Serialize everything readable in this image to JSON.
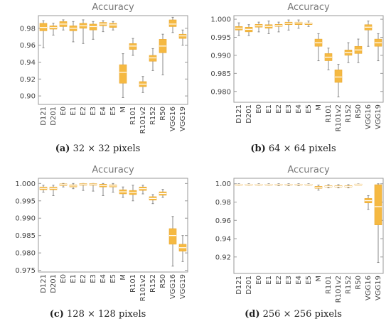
{
  "chart_data": [
    {
      "type": "box",
      "title": "Accuracy",
      "caption_label": "(a)",
      "caption_text": " 32 × 32 pixels",
      "categories": [
        "D121",
        "D201",
        "E0",
        "E1",
        "E2",
        "E3",
        "E4",
        "E5",
        "M",
        "R101",
        "R101v2",
        "R152",
        "R50",
        "VGG16",
        "VGG19"
      ],
      "ylim": [
        0.89,
        0.995
      ],
      "yticks": [
        "0.90",
        "0.92",
        "0.94",
        "0.96",
        "0.98"
      ],
      "color": "#F5B942",
      "boxes": [
        {
          "min": 0.957,
          "q1": 0.977,
          "median": 0.981,
          "q3": 0.986,
          "max": 0.989
        },
        {
          "min": 0.972,
          "q1": 0.979,
          "median": 0.981,
          "q3": 0.983,
          "max": 0.986
        },
        {
          "min": 0.978,
          "q1": 0.982,
          "median": 0.985,
          "q3": 0.988,
          "max": 0.99
        },
        {
          "min": 0.964,
          "q1": 0.977,
          "median": 0.98,
          "q3": 0.983,
          "max": 0.988
        },
        {
          "min": 0.962,
          "q1": 0.98,
          "median": 0.983,
          "q3": 0.986,
          "max": 0.99
        },
        {
          "min": 0.967,
          "q1": 0.978,
          "median": 0.982,
          "q3": 0.985,
          "max": 0.988
        },
        {
          "min": 0.976,
          "q1": 0.983,
          "median": 0.985,
          "q3": 0.987,
          "max": 0.989
        },
        {
          "min": 0.978,
          "q1": 0.981,
          "median": 0.984,
          "q3": 0.986,
          "max": 0.988
        },
        {
          "min": 0.898,
          "q1": 0.915,
          "median": 0.928,
          "q3": 0.937,
          "max": 0.95
        },
        {
          "min": 0.948,
          "q1": 0.955,
          "median": 0.959,
          "q3": 0.962,
          "max": 0.968
        },
        {
          "min": 0.904,
          "q1": 0.911,
          "median": 0.914,
          "q3": 0.917,
          "max": 0.923
        },
        {
          "min": 0.93,
          "q1": 0.941,
          "median": 0.945,
          "q3": 0.948,
          "max": 0.956
        },
        {
          "min": 0.925,
          "q1": 0.951,
          "median": 0.959,
          "q3": 0.967,
          "max": 0.973
        },
        {
          "min": 0.975,
          "q1": 0.982,
          "median": 0.985,
          "q3": 0.99,
          "max": 0.993
        },
        {
          "min": 0.96,
          "q1": 0.968,
          "median": 0.971,
          "q3": 0.973,
          "max": 0.978
        }
      ]
    },
    {
      "type": "box",
      "title": "Accuracy",
      "caption_label": "(b)",
      "caption_text": " 64 × 64 pixels",
      "categories": [
        "D121",
        "D201",
        "E0",
        "E1",
        "E2",
        "E3",
        "E4",
        "E5",
        "M",
        "R101",
        "R101v2",
        "R152",
        "R50",
        "VGG16",
        "VGG19"
      ],
      "ylim": [
        0.977,
        1.001
      ],
      "yticks": [
        "0.980",
        "0.985",
        "0.990",
        "0.995",
        "1.000"
      ],
      "color": "#F5B942",
      "boxes": [
        {
          "min": 0.9955,
          "q1": 0.997,
          "median": 0.9975,
          "q3": 0.998,
          "max": 0.999
        },
        {
          "min": 0.9955,
          "q1": 0.9965,
          "median": 0.9972,
          "q3": 0.9978,
          "max": 0.9985
        },
        {
          "min": 0.9965,
          "q1": 0.9978,
          "median": 0.9982,
          "q3": 0.9986,
          "max": 0.9992
        },
        {
          "min": 0.996,
          "q1": 0.9975,
          "median": 0.998,
          "q3": 0.9985,
          "max": 0.9995
        },
        {
          "min": 0.9965,
          "q1": 0.998,
          "median": 0.9983,
          "q3": 0.9986,
          "max": 0.9992
        },
        {
          "min": 0.997,
          "q1": 0.9985,
          "median": 0.9988,
          "q3": 0.9992,
          "max": 0.9998
        },
        {
          "min": 0.9975,
          "q1": 0.9985,
          "median": 0.999,
          "q3": 0.9992,
          "max": 0.9998
        },
        {
          "min": 0.998,
          "q1": 0.9985,
          "median": 0.9988,
          "q3": 0.999,
          "max": 0.9995
        },
        {
          "min": 0.9885,
          "q1": 0.9925,
          "median": 0.9935,
          "q3": 0.9945,
          "max": 0.996
        },
        {
          "min": 0.986,
          "q1": 0.9885,
          "median": 0.9895,
          "q3": 0.9905,
          "max": 0.992
        },
        {
          "min": 0.9785,
          "q1": 0.9825,
          "median": 0.984,
          "q3": 0.986,
          "max": 0.9875
        },
        {
          "min": 0.988,
          "q1": 0.99,
          "median": 0.9908,
          "q3": 0.9915,
          "max": 0.9935
        },
        {
          "min": 0.988,
          "q1": 0.9905,
          "median": 0.9915,
          "q3": 0.9925,
          "max": 0.9945
        },
        {
          "min": 0.9925,
          "q1": 0.997,
          "median": 0.9978,
          "q3": 0.9985,
          "max": 0.9995
        },
        {
          "min": 0.9885,
          "q1": 0.9925,
          "median": 0.9935,
          "q3": 0.9945,
          "max": 0.996
        }
      ]
    },
    {
      "type": "box",
      "title": "Accuracy",
      "caption_label": "(c)",
      "caption_text": " 128 × 128 pixels",
      "categories": [
        "D121",
        "D201",
        "E0",
        "E1",
        "E2",
        "E3",
        "E4",
        "E5",
        "M",
        "R101",
        "R101v2",
        "R152",
        "R50",
        "VGG16",
        "VGG19"
      ],
      "ylim": [
        0.9745,
        1.0015
      ],
      "yticks": [
        "0.975",
        "0.980",
        "0.985",
        "0.990",
        "0.995",
        "1.000"
      ],
      "color": "#F5B942",
      "boxes": [
        {
          "min": 0.9975,
          "q1": 0.9982,
          "median": 0.9986,
          "q3": 0.999,
          "max": 0.9995
        },
        {
          "min": 0.9965,
          "q1": 0.9982,
          "median": 0.9986,
          "q3": 0.999,
          "max": 0.9995
        },
        {
          "min": 0.999,
          "q1": 0.9994,
          "median": 0.9997,
          "q3": 0.9999,
          "max": 1.0
        },
        {
          "min": 0.9985,
          "q1": 0.999,
          "median": 0.9993,
          "q3": 0.9996,
          "max": 1.0
        },
        {
          "min": 0.998,
          "q1": 0.9995,
          "median": 0.9998,
          "q3": 1.0,
          "max": 1.0
        },
        {
          "min": 0.9978,
          "q1": 0.9995,
          "median": 0.9998,
          "q3": 1.0,
          "max": 1.0
        },
        {
          "min": 0.9965,
          "q1": 0.999,
          "median": 0.9994,
          "q3": 0.9998,
          "max": 1.0
        },
        {
          "min": 0.9975,
          "q1": 0.999,
          "median": 0.9993,
          "q3": 0.9996,
          "max": 1.0
        },
        {
          "min": 0.996,
          "q1": 0.997,
          "median": 0.9976,
          "q3": 0.9982,
          "max": 0.999
        },
        {
          "min": 0.995,
          "q1": 0.9968,
          "median": 0.9974,
          "q3": 0.998,
          "max": 0.9995
        },
        {
          "min": 0.997,
          "q1": 0.998,
          "median": 0.9985,
          "q3": 0.999,
          "max": 0.9995
        },
        {
          "min": 0.9942,
          "q1": 0.9952,
          "median": 0.9957,
          "q3": 0.9962,
          "max": 0.9968
        },
        {
          "min": 0.996,
          "q1": 0.9966,
          "median": 0.9971,
          "q3": 0.9976,
          "max": 0.9983
        },
        {
          "min": 0.9762,
          "q1": 0.9825,
          "median": 0.985,
          "q3": 0.987,
          "max": 0.9905
        },
        {
          "min": 0.9775,
          "q1": 0.9805,
          "median": 0.9815,
          "q3": 0.9825,
          "max": 0.985
        }
      ]
    },
    {
      "type": "box",
      "title": "Accuracy",
      "caption_label": "(d)",
      "caption_text": " 256 × 256 pixels",
      "categories": [
        "D121",
        "D201",
        "E0",
        "E1",
        "E2",
        "E3",
        "E4",
        "E5",
        "M",
        "R101",
        "R101v2",
        "R152",
        "R50",
        "VGG16",
        "VGG19"
      ],
      "ylim": [
        0.902,
        1.006
      ],
      "yticks": [
        "0.92",
        "0.94",
        "0.96",
        "0.98",
        "1.00"
      ],
      "color": "#F5B942",
      "boxes": [
        {
          "min": 0.9985,
          "q1": 0.999,
          "median": 0.9993,
          "q3": 0.9996,
          "max": 1.0
        },
        {
          "min": 0.9985,
          "q1": 0.999,
          "median": 0.9993,
          "q3": 0.9996,
          "max": 1.0
        },
        {
          "min": 0.9985,
          "q1": 0.999,
          "median": 0.9993,
          "q3": 0.9996,
          "max": 1.0
        },
        {
          "min": 0.9985,
          "q1": 0.999,
          "median": 0.9993,
          "q3": 0.9996,
          "max": 1.0
        },
        {
          "min": 0.998,
          "q1": 0.9988,
          "median": 0.9992,
          "q3": 0.9996,
          "max": 1.0
        },
        {
          "min": 0.998,
          "q1": 0.9988,
          "median": 0.9992,
          "q3": 0.9996,
          "max": 1.0
        },
        {
          "min": 0.998,
          "q1": 0.9988,
          "median": 0.9992,
          "q3": 0.9996,
          "max": 1.0
        },
        {
          "min": 0.9985,
          "q1": 0.999,
          "median": 0.9993,
          "q3": 0.9996,
          "max": 1.0
        },
        {
          "min": 0.993,
          "q1": 0.995,
          "median": 0.9962,
          "q3": 0.9972,
          "max": 0.9985
        },
        {
          "min": 0.9955,
          "q1": 0.9965,
          "median": 0.9972,
          "q3": 0.998,
          "max": 0.999
        },
        {
          "min": 0.9955,
          "q1": 0.9965,
          "median": 0.9972,
          "q3": 0.998,
          "max": 0.999
        },
        {
          "min": 0.9955,
          "q1": 0.9965,
          "median": 0.9972,
          "q3": 0.998,
          "max": 0.999
        },
        {
          "min": 0.999,
          "q1": 0.9993,
          "median": 0.9995,
          "q3": 0.9997,
          "max": 1.0
        },
        {
          "min": 0.972,
          "q1": 0.979,
          "median": 0.9815,
          "q3": 0.984,
          "max": 0.987
        },
        {
          "min": 0.914,
          "q1": 0.955,
          "median": 0.975,
          "q3": 0.999,
          "max": 1.0
        }
      ]
    }
  ]
}
